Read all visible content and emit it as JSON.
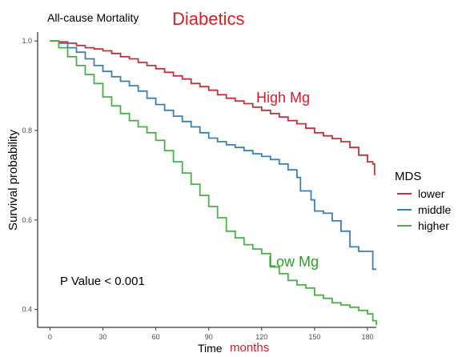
{
  "chart_data": {
    "type": "line",
    "title": "All-cause Mortality",
    "subtitle": "Diabetics",
    "xlabel": "Time",
    "xlabel_unit": "months",
    "ylabel": "Survival probability",
    "xlim": [
      -7,
      185
    ],
    "ylim": [
      0.36,
      1.02
    ],
    "x_ticks": [
      0,
      30,
      60,
      90,
      120,
      150,
      180
    ],
    "y_ticks": [
      0.4,
      0.6,
      0.8,
      1.0
    ],
    "y_tick_labels": [
      "0.4",
      "0.6",
      "0.8",
      "1.0"
    ],
    "grid": false,
    "legend": {
      "title": "MDS",
      "position": "right"
    },
    "annotations": [
      {
        "text": "High Mg",
        "color": "#d0202a"
      },
      {
        "text": "Low Mg",
        "color": "#2aa02a"
      },
      {
        "text": "P Value < 0.001",
        "color": "#000000"
      }
    ],
    "series": [
      {
        "name": "lower",
        "color": "#c0333d",
        "points": [
          [
            0,
            1.0
          ],
          [
            5,
            0.998
          ],
          [
            10,
            0.995
          ],
          [
            15,
            0.99
          ],
          [
            20,
            0.985
          ],
          [
            25,
            0.982
          ],
          [
            30,
            0.978
          ],
          [
            35,
            0.972
          ],
          [
            40,
            0.965
          ],
          [
            45,
            0.96
          ],
          [
            50,
            0.952
          ],
          [
            55,
            0.945
          ],
          [
            60,
            0.938
          ],
          [
            65,
            0.93
          ],
          [
            70,
            0.922
          ],
          [
            75,
            0.915
          ],
          [
            80,
            0.905
          ],
          [
            85,
            0.898
          ],
          [
            90,
            0.89
          ],
          [
            95,
            0.88
          ],
          [
            100,
            0.872
          ],
          [
            105,
            0.866
          ],
          [
            110,
            0.86
          ],
          [
            115,
            0.852
          ],
          [
            120,
            0.845
          ],
          [
            125,
            0.838
          ],
          [
            130,
            0.83
          ],
          [
            135,
            0.822
          ],
          [
            140,
            0.815
          ],
          [
            145,
            0.805
          ],
          [
            150,
            0.795
          ],
          [
            155,
            0.788
          ],
          [
            160,
            0.782
          ],
          [
            165,
            0.775
          ],
          [
            170,
            0.762
          ],
          [
            175,
            0.745
          ],
          [
            180,
            0.73
          ],
          [
            183,
            0.725
          ],
          [
            184,
            0.7
          ]
        ]
      },
      {
        "name": "middle",
        "color": "#3c7fb1",
        "points": [
          [
            0,
            1.0
          ],
          [
            5,
            0.995
          ],
          [
            10,
            0.985
          ],
          [
            15,
            0.975
          ],
          [
            20,
            0.96
          ],
          [
            25,
            0.945
          ],
          [
            30,
            0.932
          ],
          [
            35,
            0.92
          ],
          [
            40,
            0.91
          ],
          [
            45,
            0.9
          ],
          [
            50,
            0.888
          ],
          [
            55,
            0.872
          ],
          [
            60,
            0.858
          ],
          [
            65,
            0.845
          ],
          [
            70,
            0.832
          ],
          [
            75,
            0.82
          ],
          [
            80,
            0.808
          ],
          [
            85,
            0.795
          ],
          [
            90,
            0.783
          ],
          [
            95,
            0.775
          ],
          [
            100,
            0.768
          ],
          [
            105,
            0.762
          ],
          [
            110,
            0.755
          ],
          [
            115,
            0.748
          ],
          [
            120,
            0.742
          ],
          [
            125,
            0.735
          ],
          [
            130,
            0.725
          ],
          [
            135,
            0.712
          ],
          [
            140,
            0.695
          ],
          [
            142,
            0.665
          ],
          [
            148,
            0.645
          ],
          [
            150,
            0.62
          ],
          [
            155,
            0.615
          ],
          [
            160,
            0.598
          ],
          [
            165,
            0.575
          ],
          [
            170,
            0.54
          ],
          [
            175,
            0.53
          ],
          [
            180,
            0.53
          ],
          [
            182,
            0.53
          ],
          [
            183,
            0.49
          ],
          [
            185,
            0.49
          ]
        ]
      },
      {
        "name": "higher",
        "color": "#4daf4a",
        "points": [
          [
            0,
            1.0
          ],
          [
            5,
            0.985
          ],
          [
            10,
            0.965
          ],
          [
            15,
            0.945
          ],
          [
            20,
            0.925
          ],
          [
            25,
            0.905
          ],
          [
            30,
            0.875
          ],
          [
            35,
            0.855
          ],
          [
            40,
            0.838
          ],
          [
            45,
            0.822
          ],
          [
            50,
            0.808
          ],
          [
            55,
            0.795
          ],
          [
            60,
            0.778
          ],
          [
            65,
            0.755
          ],
          [
            70,
            0.73
          ],
          [
            75,
            0.705
          ],
          [
            80,
            0.68
          ],
          [
            85,
            0.655
          ],
          [
            90,
            0.63
          ],
          [
            95,
            0.605
          ],
          [
            100,
            0.575
          ],
          [
            105,
            0.56
          ],
          [
            110,
            0.545
          ],
          [
            115,
            0.535
          ],
          [
            120,
            0.525
          ],
          [
            125,
            0.495
          ],
          [
            130,
            0.48
          ],
          [
            135,
            0.465
          ],
          [
            140,
            0.455
          ],
          [
            145,
            0.448
          ],
          [
            150,
            0.432
          ],
          [
            155,
            0.425
          ],
          [
            160,
            0.415
          ],
          [
            165,
            0.41
          ],
          [
            170,
            0.405
          ],
          [
            175,
            0.398
          ],
          [
            180,
            0.39
          ],
          [
            183,
            0.375
          ],
          [
            185,
            0.365
          ]
        ]
      }
    ]
  }
}
